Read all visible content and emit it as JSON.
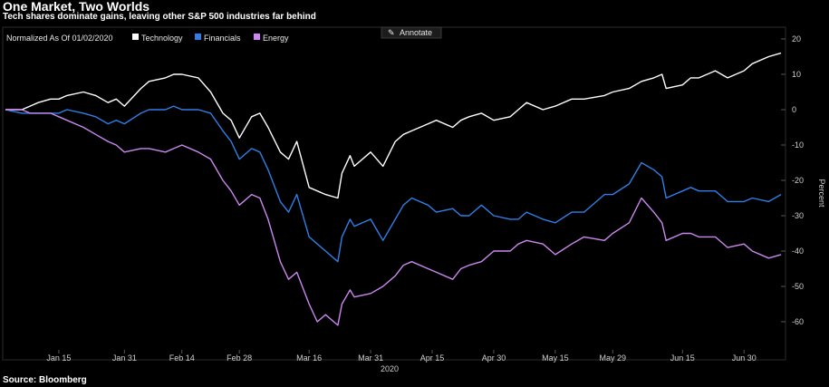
{
  "title": "One Market, Two Worlds",
  "subtitle": "Tech shares dominate gains, leaving other S&P 500 industries far behind",
  "source": "Source: Bloomberg",
  "annotate_button": "Annotate",
  "colors": {
    "background": "#000000",
    "technology": "#ffffff",
    "financials": "#2f7fe6",
    "energy": "#cc88f0"
  },
  "chart_data": {
    "type": "line",
    "title": "One Market, Two Worlds",
    "subtitle": "Tech shares dominate gains, leaving other S&P 500 industries far behind",
    "legend_label": "Normalized As Of 01/02/2020",
    "legend_placement": "top-left",
    "ylabel": "Percent",
    "xlabel": "2020",
    "ylim": [
      -65,
      22
    ],
    "y_axis_side": "right",
    "yticks": [
      20,
      10,
      0,
      -10,
      -20,
      -30,
      -40,
      -50,
      -60
    ],
    "xticks": [
      "Jan 15",
      "Jan 31",
      "Feb 14",
      "Feb 28",
      "Mar 16",
      "Mar 31",
      "Apr 15",
      "Apr 30",
      "May 15",
      "May 29",
      "Jun 15",
      "Jun 30"
    ],
    "xlim": [
      "2020-01-02",
      "2020-07-09"
    ],
    "grid": false,
    "series": [
      {
        "name": "Technology",
        "color": "#ffffff",
        "points": [
          [
            "2020-01-02",
            0
          ],
          [
            "2020-01-06",
            0
          ],
          [
            "2020-01-08",
            1
          ],
          [
            "2020-01-10",
            2
          ],
          [
            "2020-01-13",
            3
          ],
          [
            "2020-01-15",
            3
          ],
          [
            "2020-01-17",
            4
          ],
          [
            "2020-01-21",
            5
          ],
          [
            "2020-01-24",
            4
          ],
          [
            "2020-01-27",
            2
          ],
          [
            "2020-01-29",
            3
          ],
          [
            "2020-01-31",
            1
          ],
          [
            "2020-02-04",
            6
          ],
          [
            "2020-02-06",
            8
          ],
          [
            "2020-02-10",
            9
          ],
          [
            "2020-02-12",
            10
          ],
          [
            "2020-02-14",
            10
          ],
          [
            "2020-02-18",
            9
          ],
          [
            "2020-02-21",
            5
          ],
          [
            "2020-02-24",
            -1
          ],
          [
            "2020-02-26",
            -3
          ],
          [
            "2020-02-28",
            -8
          ],
          [
            "2020-03-02",
            -2
          ],
          [
            "2020-03-04",
            -1
          ],
          [
            "2020-03-06",
            -5
          ],
          [
            "2020-03-09",
            -12
          ],
          [
            "2020-03-11",
            -14
          ],
          [
            "2020-03-13",
            -9
          ],
          [
            "2020-03-16",
            -22
          ],
          [
            "2020-03-18",
            -23
          ],
          [
            "2020-03-20",
            -24
          ],
          [
            "2020-03-23",
            -25
          ],
          [
            "2020-03-24",
            -18
          ],
          [
            "2020-03-26",
            -13
          ],
          [
            "2020-03-27",
            -16
          ],
          [
            "2020-03-31",
            -12
          ],
          [
            "2020-04-03",
            -16
          ],
          [
            "2020-04-06",
            -9
          ],
          [
            "2020-04-08",
            -7
          ],
          [
            "2020-04-10",
            -6
          ],
          [
            "2020-04-14",
            -4
          ],
          [
            "2020-04-16",
            -3
          ],
          [
            "2020-04-20",
            -5
          ],
          [
            "2020-04-22",
            -3
          ],
          [
            "2020-04-24",
            -2
          ],
          [
            "2020-04-27",
            -1
          ],
          [
            "2020-04-30",
            -3
          ],
          [
            "2020-05-04",
            -2
          ],
          [
            "2020-05-06",
            0
          ],
          [
            "2020-05-08",
            2
          ],
          [
            "2020-05-12",
            0
          ],
          [
            "2020-05-15",
            1
          ],
          [
            "2020-05-19",
            3
          ],
          [
            "2020-05-22",
            3
          ],
          [
            "2020-05-27",
            4
          ],
          [
            "2020-05-29",
            5
          ],
          [
            "2020-06-02",
            6
          ],
          [
            "2020-06-05",
            8
          ],
          [
            "2020-06-08",
            9
          ],
          [
            "2020-06-10",
            10
          ],
          [
            "2020-06-11",
            6
          ],
          [
            "2020-06-15",
            7
          ],
          [
            "2020-06-17",
            9
          ],
          [
            "2020-06-19",
            9
          ],
          [
            "2020-06-23",
            11
          ],
          [
            "2020-06-26",
            9
          ],
          [
            "2020-06-30",
            11
          ],
          [
            "2020-07-02",
            13
          ],
          [
            "2020-07-06",
            15
          ],
          [
            "2020-07-09",
            16
          ]
        ]
      },
      {
        "name": "Financials",
        "color": "#2f7fe6",
        "points": [
          [
            "2020-01-02",
            0
          ],
          [
            "2020-01-06",
            -1
          ],
          [
            "2020-01-08",
            -1
          ],
          [
            "2020-01-10",
            -1
          ],
          [
            "2020-01-13",
            -1
          ],
          [
            "2020-01-15",
            -1
          ],
          [
            "2020-01-17",
            0
          ],
          [
            "2020-01-21",
            -1
          ],
          [
            "2020-01-24",
            -2
          ],
          [
            "2020-01-27",
            -4
          ],
          [
            "2020-01-29",
            -3
          ],
          [
            "2020-01-31",
            -4
          ],
          [
            "2020-02-04",
            -1
          ],
          [
            "2020-02-06",
            0
          ],
          [
            "2020-02-10",
            0
          ],
          [
            "2020-02-12",
            1
          ],
          [
            "2020-02-14",
            0
          ],
          [
            "2020-02-18",
            0
          ],
          [
            "2020-02-21",
            -1
          ],
          [
            "2020-02-24",
            -6
          ],
          [
            "2020-02-26",
            -9
          ],
          [
            "2020-02-28",
            -14
          ],
          [
            "2020-03-02",
            -11
          ],
          [
            "2020-03-04",
            -12
          ],
          [
            "2020-03-06",
            -17
          ],
          [
            "2020-03-09",
            -26
          ],
          [
            "2020-03-11",
            -29
          ],
          [
            "2020-03-13",
            -24
          ],
          [
            "2020-03-16",
            -36
          ],
          [
            "2020-03-18",
            -38
          ],
          [
            "2020-03-20",
            -40
          ],
          [
            "2020-03-23",
            -43
          ],
          [
            "2020-03-24",
            -36
          ],
          [
            "2020-03-26",
            -31
          ],
          [
            "2020-03-27",
            -33
          ],
          [
            "2020-03-31",
            -31
          ],
          [
            "2020-04-03",
            -37
          ],
          [
            "2020-04-06",
            -31
          ],
          [
            "2020-04-08",
            -27
          ],
          [
            "2020-04-10",
            -25
          ],
          [
            "2020-04-14",
            -27
          ],
          [
            "2020-04-16",
            -29
          ],
          [
            "2020-04-20",
            -28
          ],
          [
            "2020-04-22",
            -30
          ],
          [
            "2020-04-24",
            -30
          ],
          [
            "2020-04-27",
            -27
          ],
          [
            "2020-04-30",
            -30
          ],
          [
            "2020-05-04",
            -31
          ],
          [
            "2020-05-06",
            -31
          ],
          [
            "2020-05-08",
            -29
          ],
          [
            "2020-05-12",
            -31
          ],
          [
            "2020-05-15",
            -32
          ],
          [
            "2020-05-19",
            -29
          ],
          [
            "2020-05-22",
            -29
          ],
          [
            "2020-05-27",
            -24
          ],
          [
            "2020-05-29",
            -24
          ],
          [
            "2020-06-02",
            -21
          ],
          [
            "2020-06-05",
            -15
          ],
          [
            "2020-06-08",
            -17
          ],
          [
            "2020-06-10",
            -19
          ],
          [
            "2020-06-11",
            -25
          ],
          [
            "2020-06-15",
            -23
          ],
          [
            "2020-06-17",
            -22
          ],
          [
            "2020-06-19",
            -23
          ],
          [
            "2020-06-23",
            -23
          ],
          [
            "2020-06-26",
            -26
          ],
          [
            "2020-06-30",
            -26
          ],
          [
            "2020-07-02",
            -25
          ],
          [
            "2020-07-06",
            -26
          ],
          [
            "2020-07-09",
            -24
          ]
        ]
      },
      {
        "name": "Energy",
        "color": "#cc88f0",
        "points": [
          [
            "2020-01-02",
            0
          ],
          [
            "2020-01-06",
            0
          ],
          [
            "2020-01-08",
            -1
          ],
          [
            "2020-01-10",
            -1
          ],
          [
            "2020-01-13",
            -1
          ],
          [
            "2020-01-15",
            -2
          ],
          [
            "2020-01-17",
            -3
          ],
          [
            "2020-01-21",
            -5
          ],
          [
            "2020-01-24",
            -7
          ],
          [
            "2020-01-27",
            -9
          ],
          [
            "2020-01-29",
            -10
          ],
          [
            "2020-01-31",
            -12
          ],
          [
            "2020-02-04",
            -11
          ],
          [
            "2020-02-06",
            -11
          ],
          [
            "2020-02-10",
            -12
          ],
          [
            "2020-02-12",
            -11
          ],
          [
            "2020-02-14",
            -10
          ],
          [
            "2020-02-18",
            -12
          ],
          [
            "2020-02-21",
            -14
          ],
          [
            "2020-02-24",
            -20
          ],
          [
            "2020-02-26",
            -23
          ],
          [
            "2020-02-28",
            -27
          ],
          [
            "2020-03-02",
            -24
          ],
          [
            "2020-03-04",
            -25
          ],
          [
            "2020-03-06",
            -31
          ],
          [
            "2020-03-09",
            -43
          ],
          [
            "2020-03-11",
            -48
          ],
          [
            "2020-03-13",
            -46
          ],
          [
            "2020-03-16",
            -55
          ],
          [
            "2020-03-18",
            -60
          ],
          [
            "2020-03-20",
            -58
          ],
          [
            "2020-03-23",
            -61
          ],
          [
            "2020-03-24",
            -55
          ],
          [
            "2020-03-26",
            -51
          ],
          [
            "2020-03-27",
            -53
          ],
          [
            "2020-03-31",
            -52
          ],
          [
            "2020-04-03",
            -50
          ],
          [
            "2020-04-06",
            -47
          ],
          [
            "2020-04-08",
            -44
          ],
          [
            "2020-04-10",
            -43
          ],
          [
            "2020-04-14",
            -45
          ],
          [
            "2020-04-16",
            -46
          ],
          [
            "2020-04-20",
            -48
          ],
          [
            "2020-04-22",
            -45
          ],
          [
            "2020-04-24",
            -44
          ],
          [
            "2020-04-27",
            -43
          ],
          [
            "2020-04-30",
            -40
          ],
          [
            "2020-05-04",
            -40
          ],
          [
            "2020-05-06",
            -38
          ],
          [
            "2020-05-08",
            -37
          ],
          [
            "2020-05-12",
            -38
          ],
          [
            "2020-05-15",
            -41
          ],
          [
            "2020-05-19",
            -38
          ],
          [
            "2020-05-22",
            -36
          ],
          [
            "2020-05-27",
            -37
          ],
          [
            "2020-05-29",
            -35
          ],
          [
            "2020-06-02",
            -32
          ],
          [
            "2020-06-05",
            -25
          ],
          [
            "2020-06-08",
            -29
          ],
          [
            "2020-06-10",
            -32
          ],
          [
            "2020-06-11",
            -37
          ],
          [
            "2020-06-15",
            -35
          ],
          [
            "2020-06-17",
            -35
          ],
          [
            "2020-06-19",
            -36
          ],
          [
            "2020-06-23",
            -36
          ],
          [
            "2020-06-26",
            -39
          ],
          [
            "2020-06-30",
            -38
          ],
          [
            "2020-07-02",
            -40
          ],
          [
            "2020-07-06",
            -42
          ],
          [
            "2020-07-09",
            -41
          ]
        ]
      }
    ]
  }
}
